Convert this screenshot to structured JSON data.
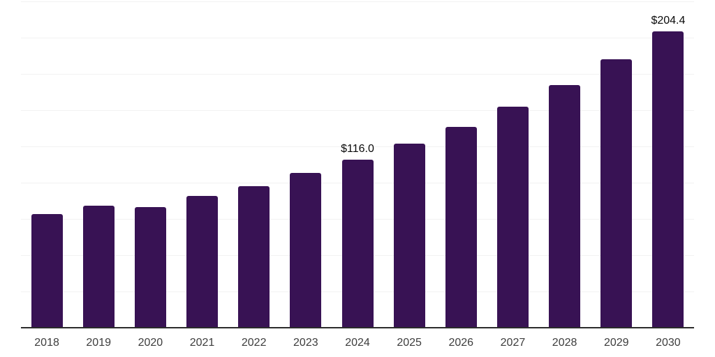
{
  "chart_data": {
    "type": "bar",
    "title": "",
    "xlabel": "",
    "ylabel": "",
    "categories": [
      "2018",
      "2019",
      "2020",
      "2021",
      "2022",
      "2023",
      "2024",
      "2025",
      "2026",
      "2027",
      "2028",
      "2029",
      "2030"
    ],
    "values": [
      78.4,
      84.3,
      83.2,
      90.7,
      97.6,
      106.7,
      116.0,
      126.9,
      138.6,
      152.6,
      167.5,
      185.0,
      204.4
    ],
    "value_labels": {
      "2024": "$116.0",
      "2030": "$204.4"
    },
    "ylim": [
      0,
      225
    ],
    "gridline_interval": 25,
    "grid": "horizontal-only",
    "legend": "none",
    "y_axis_tick_labels_visible": false,
    "colors": {
      "bar": "#381254",
      "gridline": "#f2f2f2",
      "axis_line": "#2b2b2b",
      "tick_label": "#3d3d3d",
      "value_label": "#0a0a0a",
      "background": "#ffffff"
    }
  }
}
